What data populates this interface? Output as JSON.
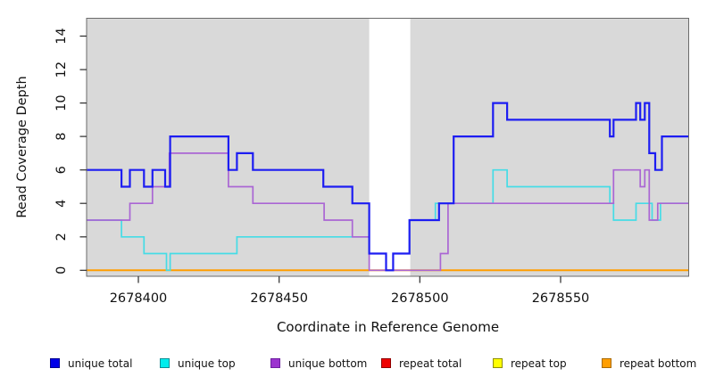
{
  "figure": {
    "x_title": "Coordinate in Reference Genome",
    "y_title": "Read Coverage Depth"
  },
  "chart_data": {
    "type": "line",
    "style": "step",
    "title": "",
    "xlabel": "Coordinate in Reference Genome",
    "ylabel": "Read Coverage Depth",
    "xlim": [
      2678381.6,
      2678595.5
    ],
    "ylim": [
      0,
      15
    ],
    "x_ticks": [
      2678400,
      2678450,
      2678500,
      2678550
    ],
    "y_ticks": [
      0,
      2,
      4,
      6,
      8,
      10,
      12,
      14
    ],
    "plot_bg": "#d9d9d9",
    "grid": false,
    "legend_position": "bottom",
    "gap_region": {
      "x1": 2678482,
      "x2": 2678496.6,
      "color": "#ffffff"
    },
    "series": [
      {
        "id": "repeat-total",
        "name": "repeat total",
        "color": "#e80000",
        "width": 1.5,
        "points": [
          [
            2678381.6,
            0
          ],
          [
            2678595.5,
            0
          ]
        ]
      },
      {
        "id": "repeat-top",
        "name": "repeat top",
        "color": "#f8f800",
        "width": 1.5,
        "points": [
          [
            2678381.6,
            0
          ],
          [
            2678595.5,
            0
          ]
        ]
      },
      {
        "id": "repeat-bottom",
        "name": "repeat bottom",
        "color": "#ff9e00",
        "width": 2,
        "points": [
          [
            2678381.6,
            0
          ],
          [
            2678595.5,
            0
          ]
        ]
      },
      {
        "id": "unique-top",
        "name": "unique top",
        "color": "#45dce6",
        "width": 1.7,
        "points": [
          [
            2678381.6,
            3
          ],
          [
            2678394,
            2
          ],
          [
            2678402,
            1
          ],
          [
            2678410,
            0
          ],
          [
            2678411.3,
            1
          ],
          [
            2678435,
            2
          ],
          [
            2678482,
            1
          ],
          [
            2678488,
            0
          ],
          [
            2678490.5,
            1
          ],
          [
            2678496.3,
            3
          ],
          [
            2678505.5,
            4
          ],
          [
            2678526,
            6
          ],
          [
            2678531,
            5
          ],
          [
            2678567.5,
            4
          ],
          [
            2678568.8,
            3
          ],
          [
            2678576.8,
            4
          ],
          [
            2678582.5,
            3
          ],
          [
            2678585.5,
            4
          ],
          [
            2678595.5,
            4
          ]
        ]
      },
      {
        "id": "unique-bottom",
        "name": "unique bottom",
        "color": "#aa66d4",
        "width": 1.7,
        "points": [
          [
            2678381.6,
            3
          ],
          [
            2678397,
            4
          ],
          [
            2678405,
            5
          ],
          [
            2678411,
            7
          ],
          [
            2678432,
            5
          ],
          [
            2678440.7,
            4
          ],
          [
            2678466,
            3
          ],
          [
            2678476,
            2
          ],
          [
            2678482,
            0
          ],
          [
            2678507.3,
            1
          ],
          [
            2678510,
            4
          ],
          [
            2678568.8,
            6
          ],
          [
            2678578.3,
            5
          ],
          [
            2678579.9,
            6
          ],
          [
            2678581.5,
            3
          ],
          [
            2678584.5,
            4
          ],
          [
            2678595.5,
            4
          ]
        ]
      },
      {
        "id": "unique-total",
        "name": "unique total",
        "color": "#1d1df2",
        "width": 2.2,
        "points": [
          [
            2678381.6,
            6
          ],
          [
            2678394,
            5
          ],
          [
            2678397,
            6
          ],
          [
            2678402,
            5
          ],
          [
            2678405,
            6
          ],
          [
            2678409.5,
            5
          ],
          [
            2678411.3,
            8
          ],
          [
            2678432,
            6
          ],
          [
            2678435,
            7
          ],
          [
            2678440.7,
            6
          ],
          [
            2678465.7,
            5
          ],
          [
            2678476,
            4
          ],
          [
            2678482,
            1
          ],
          [
            2678488,
            0
          ],
          [
            2678490.5,
            1
          ],
          [
            2678496.3,
            3
          ],
          [
            2678506.8,
            4
          ],
          [
            2678512,
            8
          ],
          [
            2678526,
            10
          ],
          [
            2678531,
            9
          ],
          [
            2678567.5,
            8
          ],
          [
            2678568.8,
            9
          ],
          [
            2678576.8,
            10
          ],
          [
            2678578.3,
            9
          ],
          [
            2678579.9,
            10
          ],
          [
            2678581.5,
            7
          ],
          [
            2678583.6,
            6
          ],
          [
            2678586,
            8
          ],
          [
            2678595.5,
            8
          ]
        ]
      }
    ]
  },
  "legend": {
    "items": [
      {
        "id": "unique-total",
        "label": "unique total",
        "fill": "#0000e8",
        "border": "#000090"
      },
      {
        "id": "unique-top",
        "label": "unique top",
        "fill": "#00eded",
        "border": "#0b8f96"
      },
      {
        "id": "unique-bottom",
        "label": "unique bottom",
        "fill": "#9c33cf",
        "border": "#6d1fa0"
      },
      {
        "id": "repeat-total",
        "label": "repeat total",
        "fill": "#ee0000",
        "border": "#8f0000"
      },
      {
        "id": "repeat-top",
        "label": "repeat top",
        "fill": "#ffff00",
        "border": "#8f8f00"
      },
      {
        "id": "repeat-bottom",
        "label": "repeat bottom",
        "fill": "#ff9e00",
        "border": "#a96a00"
      }
    ]
  }
}
